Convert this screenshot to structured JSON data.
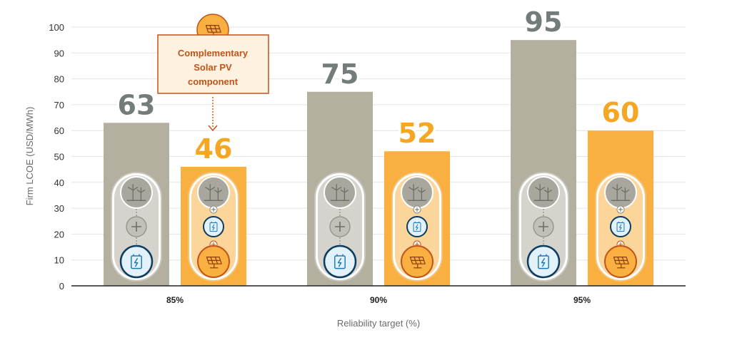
{
  "chart_data": {
    "type": "bar",
    "categories": [
      "85%",
      "90%",
      "95%"
    ],
    "series": [
      {
        "values": [
          63,
          75,
          95
        ]
      },
      {
        "values": [
          46,
          52,
          60
        ]
      }
    ],
    "xlabel": "Reliability target (%)",
    "ylabel": "Firm LCOE (USD/MWh)",
    "ylim": [
      0,
      100
    ],
    "yticks": [
      0,
      10,
      20,
      30,
      40,
      50,
      60,
      70,
      80,
      90,
      100
    ],
    "grid": true,
    "annotation": "Complementary Solar PV component",
    "colors": {
      "series_1_bar": "#b4b0a0",
      "series_1_label": "#737b7b",
      "series_2_bar": "#f9b040",
      "series_2_label": "#f5a623",
      "callout_text": "#c0541a",
      "callout_fill": "#fff1df",
      "callout_border": "#c0541a"
    },
    "icons": [
      "wind-turbine-icon",
      "battery-icon",
      "solar-panel-icon",
      "plus-icon"
    ]
  }
}
